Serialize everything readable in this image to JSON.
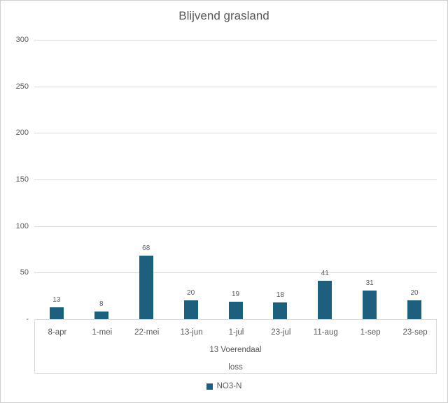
{
  "window": {
    "background": "#ffffff",
    "border_color": "#cfcfcf"
  },
  "chart_data": {
    "type": "bar",
    "title": "Blijvend grasland",
    "categories": [
      "8-apr",
      "1-mei",
      "22-mei",
      "13-jun",
      "1-jul",
      "23-jul",
      "11-aug",
      "1-sep",
      "23-sep"
    ],
    "series": [
      {
        "name": "NO3-N",
        "values": [
          13,
          8,
          68,
          20,
          19,
          18,
          41,
          31,
          20
        ],
        "color": "#1d5f7d"
      }
    ],
    "group_labels": [
      "13 Voerendaal",
      "loss"
    ],
    "data_labels_shown": true,
    "ylim": [
      0,
      300
    ],
    "ytick_step": 50,
    "ytick_labels": [
      "-",
      "50",
      "100",
      "150",
      "200",
      "250",
      "300"
    ],
    "grid": true,
    "gridline_color": "#d9d9d9",
    "text_color": "#595959",
    "legend_position": "bottom",
    "xlabel": "",
    "ylabel": ""
  }
}
